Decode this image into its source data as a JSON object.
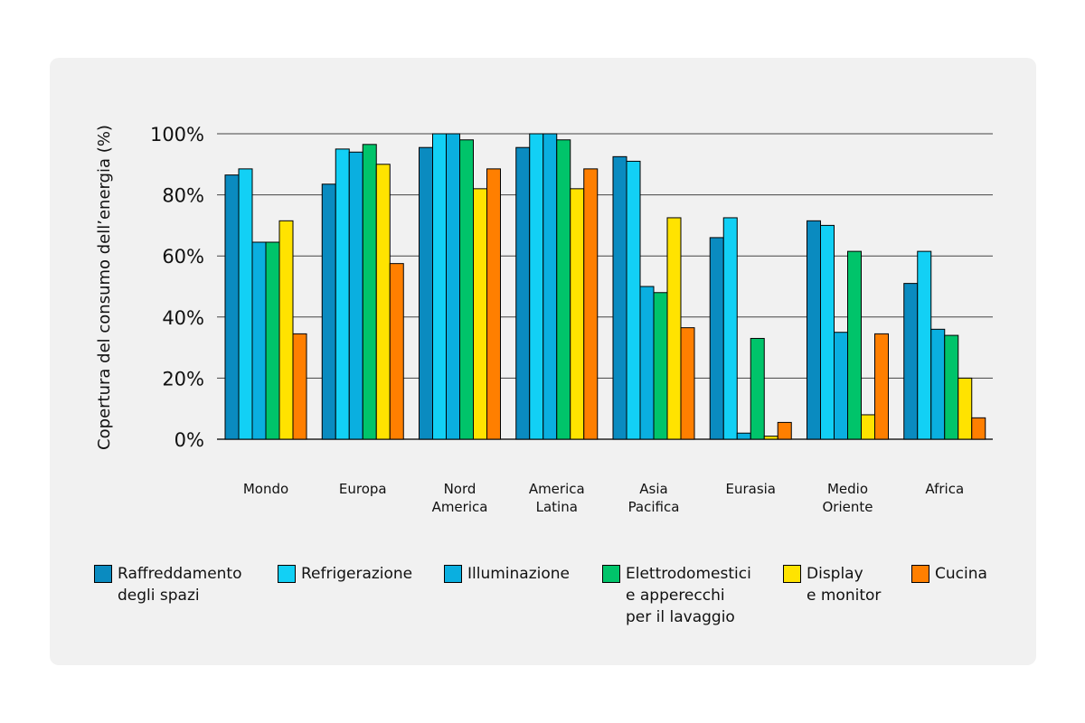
{
  "chart_data": {
    "type": "bar",
    "title": "",
    "xlabel": "",
    "ylabel": "Copertura del consumo dell’energia (%)",
    "ylim": [
      0,
      100
    ],
    "yticks": [
      "0%",
      "20%",
      "40%",
      "60%",
      "80%",
      "100%"
    ],
    "grid": true,
    "legend_position": "bottom",
    "categories": [
      "Mondo",
      "Europa",
      "Nord\nAmerica",
      "America\nLatina",
      "Asia\nPacifica",
      "Eurasia",
      "Medio\nOriente",
      "Africa"
    ],
    "series": [
      {
        "name": "Raffreddamento\ndegli spazi",
        "color": "#0a8bc0",
        "values": [
          86.5,
          83.5,
          95.5,
          95.5,
          92.5,
          66,
          71.5,
          51
        ]
      },
      {
        "name": "Refrigerazione",
        "color": "#12d0f5",
        "values": [
          88.5,
          95,
          100,
          100,
          91,
          72.5,
          70,
          61.5
        ]
      },
      {
        "name": "Illuminazione",
        "color": "#0aafe0",
        "values": [
          64.5,
          94,
          100,
          100,
          50,
          2,
          35,
          36
        ]
      },
      {
        "name": "Elettrodomestici\ne apperecchi\nper il lavaggio",
        "color": "#00c46a",
        "values": [
          64.5,
          96.5,
          98,
          98,
          48,
          33,
          61.5,
          34
        ]
      },
      {
        "name": "Display\ne monitor",
        "color": "#ffe300",
        "values": [
          71.5,
          90,
          82,
          82,
          72.5,
          1,
          8,
          20
        ]
      },
      {
        "name": "Cucina",
        "color": "#ff7f00",
        "values": [
          34.5,
          57.5,
          88.5,
          88.5,
          36.5,
          5.5,
          34.5,
          7
        ]
      }
    ]
  }
}
